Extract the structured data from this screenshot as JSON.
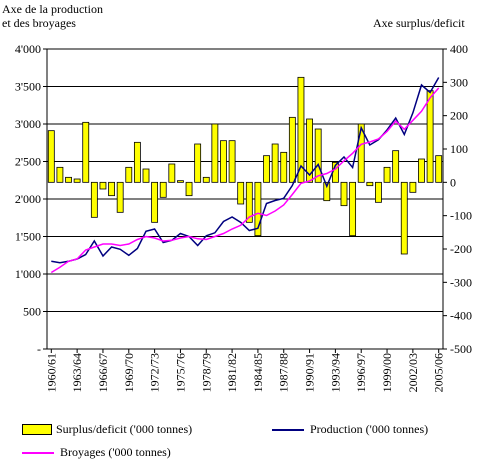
{
  "chart_data": {
    "type": "bar+line",
    "left_axis_title_line1": "Axe de la production",
    "left_axis_title_line2": "et des broyages",
    "right_axis_title": "Axe surplus/deficit",
    "left_axis": {
      "min": 0,
      "max": 4000,
      "step": 500,
      "tick_labels": [
        "-",
        "500",
        "1'000",
        "1'500",
        "2'000",
        "2'500",
        "3'000",
        "3'500",
        "4'000"
      ]
    },
    "right_axis": {
      "min": -500,
      "max": 400,
      "step": 100,
      "tick_labels": [
        "-500",
        "-400",
        "-300",
        "-200",
        "-100",
        "0",
        "100",
        "200",
        "300",
        "400"
      ]
    },
    "categories": [
      "1960/61",
      "1961/62",
      "1962/63",
      "1963/64",
      "1964/65",
      "1965/66",
      "1966/67",
      "1967/68",
      "1968/69",
      "1969/70",
      "1970/71",
      "1971/72",
      "1972/73",
      "1973/74",
      "1974/75",
      "1975/76",
      "1976/77",
      "1977/78",
      "1978/79",
      "1979/80",
      "1980/81",
      "1981/82",
      "1982/83",
      "1983/84",
      "1984/85",
      "1985/86",
      "1986/87",
      "1987/88",
      "1988/89",
      "1989/90",
      "1990/91",
      "1991/92",
      "1992/93",
      "1993/94",
      "1994/95",
      "1995/96",
      "1996/97",
      "1997/98",
      "1998/99",
      "1999/00",
      "2000/01",
      "2001/02",
      "2002/03",
      "2003/04",
      "2004/05",
      "2005/06"
    ],
    "x_tick_labels": [
      "1960/61",
      "1963/64",
      "1966/67",
      "1969/70",
      "1972/73",
      "1975/76",
      "1978/79",
      "1981/82",
      "1984/85",
      "1987/88",
      "1990/91",
      "1993/94",
      "1996/97",
      "1999/00",
      "2002/03",
      "2005/06"
    ],
    "series": [
      {
        "name": "Surplus/deficit ('000 tonnes)",
        "type": "bar",
        "axis": "right",
        "color": "#ffff00",
        "values": [
          155,
          45,
          15,
          10,
          180,
          -105,
          -20,
          -40,
          -90,
          45,
          120,
          40,
          -120,
          -45,
          55,
          5,
          -40,
          115,
          15,
          175,
          125,
          125,
          -65,
          -120,
          -160,
          80,
          115,
          90,
          195,
          315,
          190,
          160,
          -55,
          60,
          -70,
          -160,
          175,
          -10,
          -60,
          45,
          95,
          -215,
          -30,
          70,
          275,
          80
        ]
      },
      {
        "name": "Production ('000 tonnes)",
        "type": "line",
        "axis": "left",
        "color": "#000080",
        "values": [
          1170,
          1150,
          1170,
          1200,
          1260,
          1440,
          1240,
          1360,
          1330,
          1250,
          1340,
          1570,
          1600,
          1420,
          1450,
          1540,
          1500,
          1380,
          1510,
          1550,
          1700,
          1760,
          1690,
          1580,
          1610,
          1940,
          1980,
          2010,
          2180,
          2440,
          2320,
          2460,
          2170,
          2450,
          2560,
          2420,
          2950,
          2720,
          2790,
          2920,
          3080,
          2860,
          3150,
          3520,
          3420,
          3620
        ]
      },
      {
        "name": "Broyages ('000 tonnes)",
        "type": "line",
        "axis": "left",
        "color": "#ff00ff",
        "values": [
          1020,
          1090,
          1170,
          1200,
          1320,
          1360,
          1400,
          1400,
          1380,
          1400,
          1460,
          1500,
          1480,
          1440,
          1450,
          1480,
          1500,
          1470,
          1460,
          1500,
          1540,
          1600,
          1650,
          1760,
          1810,
          1780,
          1840,
          1920,
          2060,
          2210,
          2240,
          2310,
          2340,
          2400,
          2510,
          2610,
          2730,
          2760,
          2800,
          2900,
          3040,
          2930,
          3050,
          3170,
          3350,
          3480
        ]
      }
    ]
  },
  "legend": {
    "surplus": "Surplus/deficit ('000 tonnes)",
    "production": "Production ('000 tonnes)",
    "broyages": "Broyages ('000 tonnes)"
  }
}
